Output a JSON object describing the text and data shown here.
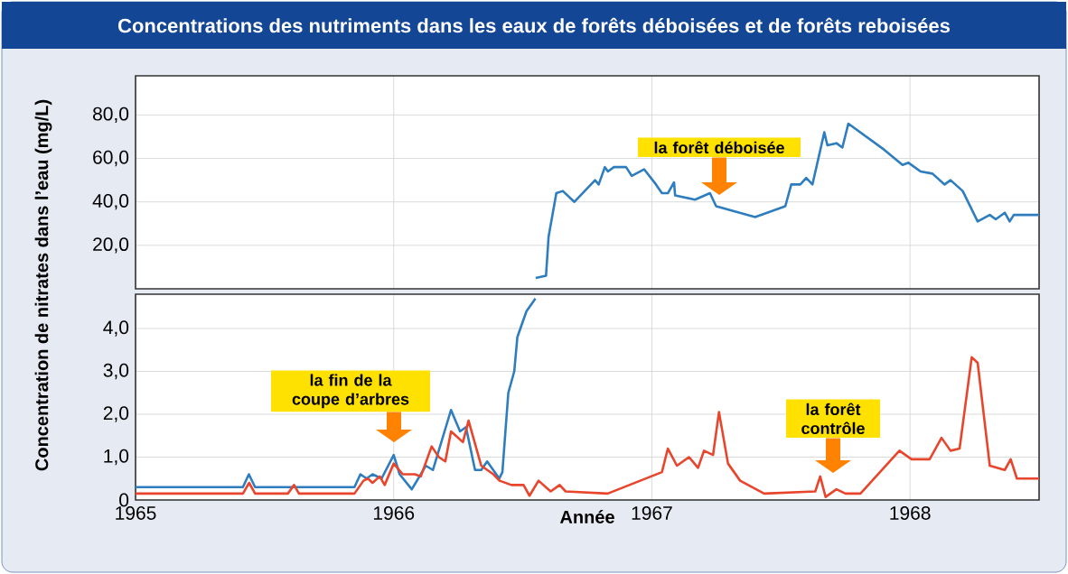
{
  "chart_data": [
    {
      "type": "line",
      "title": "Concentrations des nutriments dans les eaux de forêts déboisées et de forêts reboisées",
      "ylabel": "Concentration de nitrates dans l’eau (mg/L)",
      "xlim": [
        1965,
        1968.5
      ],
      "xticks": [
        1965,
        1966,
        1967,
        1968
      ],
      "ylim": [
        0,
        98
      ],
      "yticks": [
        {
          "value": 20,
          "label": "20,0"
        },
        {
          "value": 40,
          "label": "40,0"
        },
        {
          "value": 60,
          "label": "60,0"
        },
        {
          "value": 80,
          "label": "80,0"
        }
      ],
      "tick_labels": "y",
      "grid": true,
      "series": [
        {
          "color": "#2e7dbf",
          "x": [
            1966.55,
            1966.59,
            1966.6,
            1966.63,
            1966.655,
            1966.7,
            1966.78,
            1966.794,
            1966.818,
            1966.83,
            1966.853,
            1966.9,
            1966.922,
            1966.97,
            1967.016,
            1967.039,
            1967.062,
            1967.086,
            1967.09,
            1967.167,
            1967.225,
            1967.249,
            1967.4,
            1967.517,
            1967.54,
            1967.575,
            1967.598,
            1967.622,
            1967.668,
            1967.68,
            1967.715,
            1967.738,
            1967.761,
            1967.9,
            1967.971,
            1967.994,
            1968.041,
            1968.087,
            1968.134,
            1968.157,
            1968.204,
            1968.262,
            1968.309,
            1968.332,
            1968.367,
            1968.386,
            1968.402,
            1968.5
          ],
          "values": [
            5,
            6,
            24,
            44,
            45,
            40,
            50,
            48,
            56,
            54,
            56,
            56,
            52,
            55,
            48,
            44,
            44,
            49,
            43,
            41,
            44,
            38,
            33,
            38,
            48,
            48,
            51,
            48,
            72,
            66,
            67,
            65,
            76,
            64,
            57,
            58,
            54,
            53,
            48,
            50,
            45,
            31,
            34,
            32,
            35,
            31,
            34,
            34
          ]
        }
      ],
      "annotations": [
        "la forêt déboisée"
      ]
    },
    {
      "type": "line",
      "xlabel": "Année",
      "xlim": [
        1965,
        1968.5
      ],
      "xticks": [
        1965,
        1966,
        1967,
        1968
      ],
      "ylim": [
        0,
        4.8
      ],
      "yticks": [
        0,
        {
          "value": 1,
          "label": "1,0"
        },
        {
          "value": 2,
          "label": "2,0"
        },
        {
          "value": 3,
          "label": "3,0"
        },
        {
          "value": 4,
          "label": "4,0"
        }
      ],
      "grid": true,
      "series": [
        {
          "color": "#2e7dbf",
          "x": [
            1965,
            1965.416,
            1965.439,
            1965.463,
            1965.848,
            1965.871,
            1965.895,
            1965.918,
            1965.953,
            1966.0,
            1966.023,
            1966.07,
            1966.105,
            1966.124,
            1966.152,
            1966.187,
            1966.222,
            1966.257,
            1966.28,
            1966.315,
            1966.339,
            1966.362,
            1966.409,
            1966.421,
            1966.444,
            1966.467,
            1966.479,
            1966.514,
            1966.549
          ],
          "values": [
            0.3,
            0.3,
            0.6,
            0.3,
            0.3,
            0.6,
            0.5,
            0.6,
            0.5,
            1.05,
            0.6,
            0.25,
            0.6,
            0.8,
            0.7,
            1.4,
            2.1,
            1.6,
            1.7,
            0.7,
            0.7,
            0.9,
            0.5,
            0.65,
            2.5,
            3.0,
            3.8,
            4.4,
            4.7
          ]
        },
        {
          "color": "#e8452c",
          "x": [
            1965,
            1965.416,
            1965.44,
            1965.463,
            1965.59,
            1965.614,
            1965.633,
            1965.848,
            1965.883,
            1965.9,
            1965.918,
            1965.946,
            1965.965,
            1966.0,
            1966.035,
            1966.082,
            1966.105,
            1966.147,
            1966.175,
            1966.2,
            1966.222,
            1966.268,
            1966.29,
            1966.339,
            1966.386,
            1966.41,
            1966.456,
            1966.503,
            1966.526,
            1966.561,
            1966.608,
            1966.643,
            1966.666,
            1966.829,
            1967.039,
            1967.062,
            1967.097,
            1967.144,
            1967.179,
            1967.202,
            1967.237,
            1967.26,
            1967.295,
            1967.342,
            1967.435,
            1967.633,
            1967.652,
            1967.673,
            1967.715,
            1967.75,
            1967.808,
            1967.959,
            1968.006,
            1968.076,
            1968.122,
            1968.157,
            1968.192,
            1968.239,
            1968.262,
            1968.309,
            1968.367,
            1968.39,
            1968.414,
            1968.5
          ],
          "values": [
            0.15,
            0.15,
            0.4,
            0.15,
            0.15,
            0.35,
            0.15,
            0.15,
            0.45,
            0.5,
            0.4,
            0.55,
            0.35,
            0.85,
            0.6,
            0.6,
            0.55,
            1.25,
            1.0,
            0.9,
            1.6,
            1.35,
            1.85,
            0.8,
            0.6,
            0.45,
            0.35,
            0.35,
            0.1,
            0.45,
            0.2,
            0.35,
            0.2,
            0.15,
            0.65,
            1.2,
            0.8,
            1.0,
            0.75,
            1.15,
            1.05,
            2.05,
            0.85,
            0.45,
            0.15,
            0.2,
            0.55,
            0.07,
            0.25,
            0.15,
            0.15,
            1.15,
            0.95,
            0.95,
            1.45,
            1.15,
            1.2,
            3.33,
            3.2,
            0.8,
            0.7,
            0.95,
            0.5,
            0.5
          ]
        }
      ],
      "annotations": [
        "la fin de la coupe d’arbres",
        "la forêt contrôle"
      ]
    }
  ]
}
